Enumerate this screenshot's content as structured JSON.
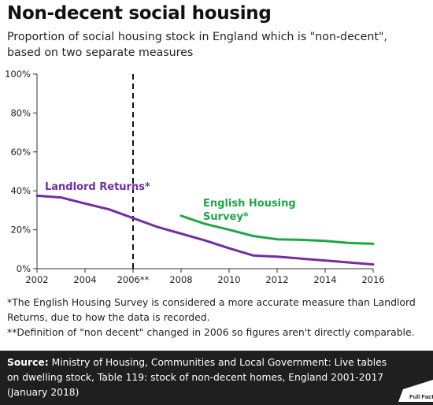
{
  "header": {
    "title": "Non-decent social housing",
    "subtitle": "Proportion of social housing stock in England which is \"non-decent\", based on two separate measures"
  },
  "chart_data": {
    "type": "line",
    "title": "Non-decent social housing",
    "subtitle": "Proportion of social housing stock in England which is \"non-decent\", based on two separate measures",
    "xlabel": "",
    "ylabel": "",
    "xlim": [
      2002,
      2016
    ],
    "ylim": [
      0,
      100
    ],
    "x_ticks": [
      "2002",
      "2004",
      "2006**",
      "2008",
      "2010",
      "2012",
      "2014",
      "2016"
    ],
    "y_ticks": [
      "0%",
      "20%",
      "40%",
      "60%",
      "80%",
      "100%"
    ],
    "grid": false,
    "reference_line": {
      "x": 2006,
      "style": "dashed"
    },
    "series": [
      {
        "name": "Landlord Returns*",
        "color": "#7030a0",
        "x": [
          2002,
          2003,
          2004,
          2005,
          2006,
          2007,
          2008,
          2009,
          2010,
          2011,
          2012,
          2013,
          2014,
          2015,
          2016
        ],
        "values": [
          37.5,
          36.6,
          33.5,
          30.5,
          26.0,
          21.5,
          18.0,
          14.5,
          10.5,
          6.8,
          6.2,
          5.2,
          4.2,
          3.2,
          2.2
        ]
      },
      {
        "name": "English Housing Survey*",
        "color": "#1ea647",
        "x": [
          2008,
          2009,
          2010,
          2011,
          2012,
          2013,
          2014,
          2015,
          2016
        ],
        "values": [
          27.2,
          23.0,
          20.0,
          16.8,
          15.1,
          14.8,
          14.3,
          13.2,
          12.8
        ]
      }
    ],
    "series_labels": [
      "Landlord Returns*",
      "English Housing",
      "Survey*"
    ]
  },
  "notes": [
    "*The English Housing Survey is considered a more accurate measure than Landlord Returns, due to how the data is recorded.",
    "**Definition of \"non decent\" changed in 2006 so figures aren't directly comparable."
  ],
  "source": {
    "label": "Source:",
    "text": "Ministry of Housing, Communities and Local Government: Live tables on dwelling stock, Table 119: stock of non-decent homes, England 2001-2017 (January 2018)"
  },
  "logo": {
    "text": "Full Fact",
    "icon": "full-fact-logo"
  }
}
